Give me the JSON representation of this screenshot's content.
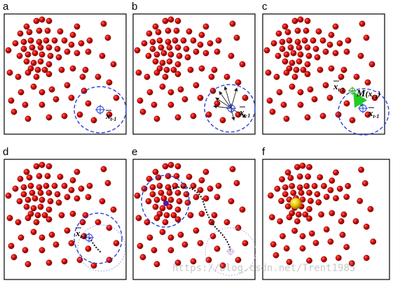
{
  "panels": [
    {
      "id": "a",
      "label": "a"
    },
    {
      "id": "b",
      "label": "b"
    },
    {
      "id": "c",
      "label": "c"
    },
    {
      "id": "d",
      "label": "d"
    },
    {
      "id": "e",
      "label": "e"
    },
    {
      "id": "f",
      "label": "f"
    }
  ],
  "annotations": {
    "x_symbol": "x",
    "subscript_t1": "t-1",
    "x_prime_sub": "t-1",
    "m_label": "M",
    "m_arg": "(x",
    "m_arg_sub": "t-1",
    "m_close": ")"
  },
  "watermark": "https://blog.csdn.net/Trent1985",
  "colors": {
    "particle": "#d40000",
    "particle_edge": "#6a0000",
    "window": "#2a3fd8",
    "mean_marker": "#2a3fd8",
    "shift_arrow": "#22cc22",
    "mode": "#f2c800"
  }
}
